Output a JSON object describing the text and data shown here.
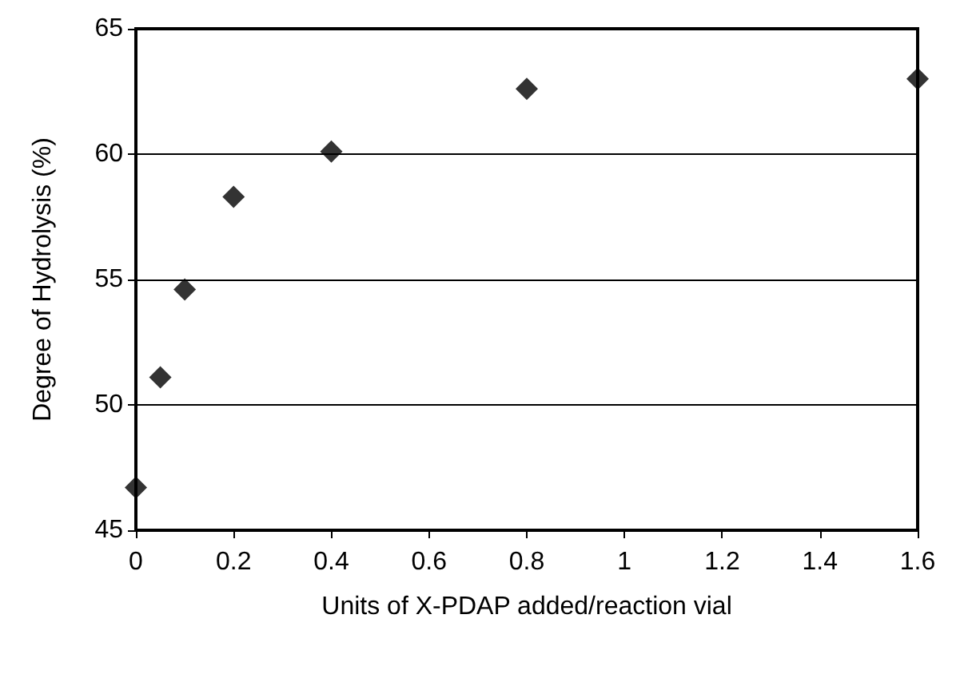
{
  "chart_data": {
    "type": "scatter",
    "xlabel": "Units of X-PDAP added/reaction vial",
    "ylabel": "Degree of Hydrolysis (%)",
    "x": [
      0,
      0.05,
      0.1,
      0.2,
      0.4,
      0.8,
      1.6
    ],
    "series": [
      {
        "color": "#000000",
        "values": [
          46.7,
          51.1,
          54.6,
          58.3,
          60.1,
          62.6,
          63.0
        ]
      }
    ],
    "xlim": [
      0,
      1.6
    ],
    "xticks": [
      0,
      0.2,
      0.4,
      0.6,
      0.8,
      1,
      1.2,
      1.4,
      1.6
    ],
    "ylim": [
      45,
      65
    ],
    "yticks": [
      45,
      50,
      55,
      60,
      65
    ],
    "grid": "y",
    "marker": "diamond"
  }
}
